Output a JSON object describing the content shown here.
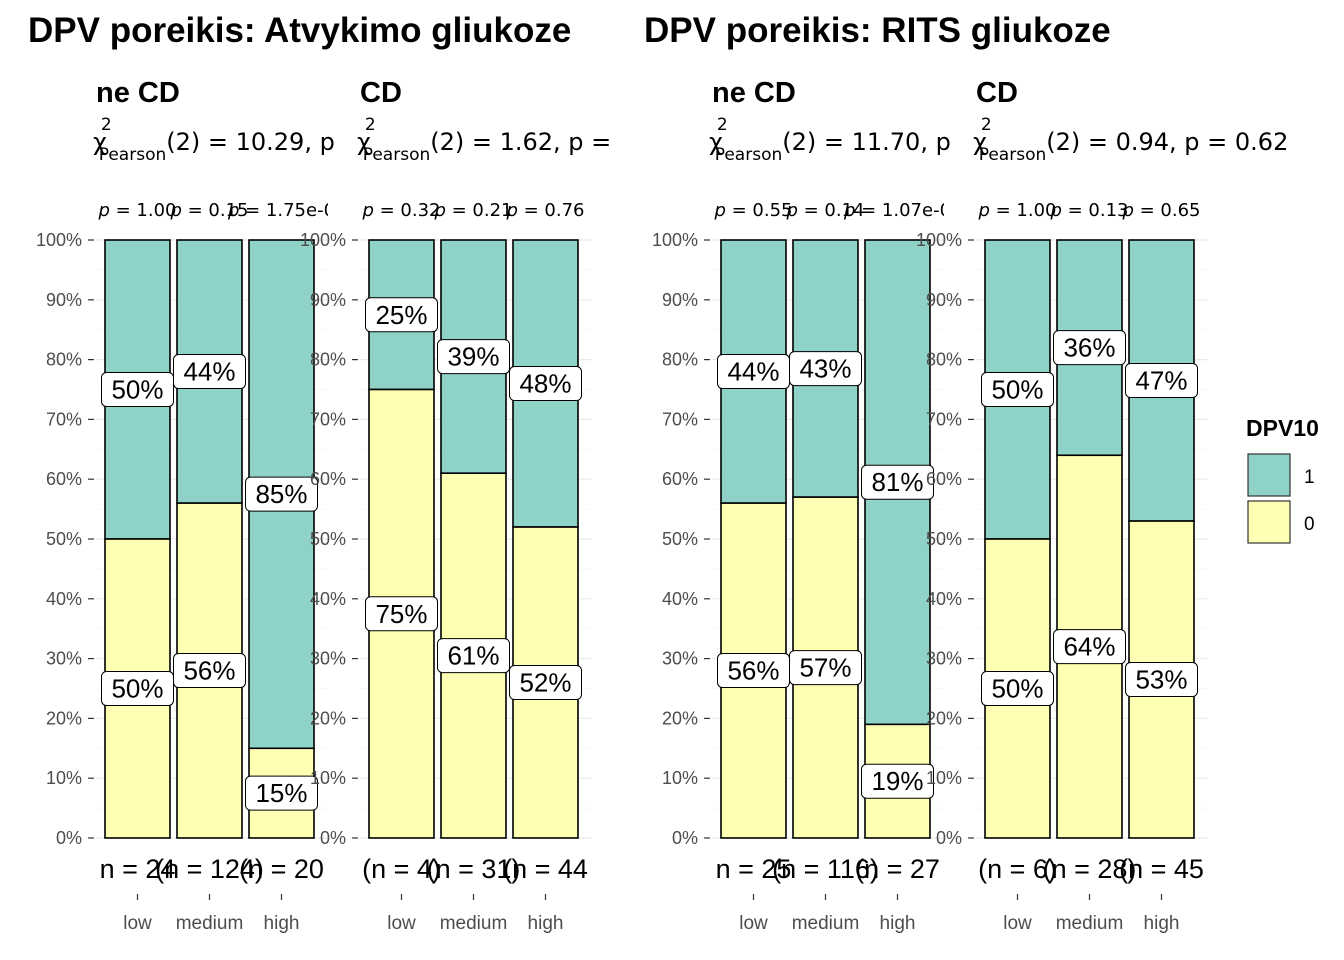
{
  "titles": [
    "DPV poreikis: Atvykimo gliukoze",
    "DPV poreikis: RITS gliukoze"
  ],
  "legend": {
    "title": "DPV10",
    "items": [
      {
        "label": "1",
        "color": "#8fd3c8"
      },
      {
        "label": "0",
        "color": "#ffffb3"
      }
    ]
  },
  "chart_data": [
    {
      "type": "bar",
      "stacked": "percent",
      "group_title": "DPV poreikis: Atvykimo gliukoze",
      "subtitle": "ne CD",
      "stat": {
        "chi_sub": "Pearson",
        "chi_sup": "2",
        "text": "(2) = 10.29, p"
      },
      "categories": [
        "low",
        "medium",
        "high"
      ],
      "y_ticks": [
        "0%",
        "10%",
        "20%",
        "30%",
        "40%",
        "50%",
        "60%",
        "70%",
        "80%",
        "90%",
        "100%"
      ],
      "ylim": [
        0,
        100
      ],
      "series": [
        {
          "name": "0",
          "values": [
            50,
            56,
            15
          ]
        },
        {
          "name": "1",
          "values": [
            50,
            44,
            85
          ]
        }
      ],
      "p_labels": [
        "p = 1.00",
        "p = 0.15",
        "p = 1.75e-0"
      ],
      "n_labels": [
        "n = 24",
        "(n = 124)",
        "(n = 20"
      ]
    },
    {
      "type": "bar",
      "stacked": "percent",
      "group_title": "DPV poreikis: Atvykimo gliukoze",
      "subtitle": "CD",
      "stat": {
        "chi_sub": "Pearson",
        "chi_sup": "2",
        "text": "(2) = 1.62, p ="
      },
      "categories": [
        "low",
        "medium",
        "high"
      ],
      "y_ticks": [
        "0%",
        "10%",
        "20%",
        "30%",
        "40%",
        "50%",
        "60%",
        "70%",
        "80%",
        "90%",
        "100%"
      ],
      "ylim": [
        0,
        100
      ],
      "series": [
        {
          "name": "0",
          "values": [
            75,
            61,
            52
          ]
        },
        {
          "name": "1",
          "values": [
            25,
            39,
            48
          ]
        }
      ],
      "p_labels": [
        "p = 0.32",
        "p = 0.21",
        "p = 0.76"
      ],
      "n_labels": [
        "(n = 4)",
        "(n = 31)",
        "(n = 44"
      ]
    },
    {
      "type": "bar",
      "stacked": "percent",
      "group_title": "DPV poreikis: RITS gliukoze",
      "subtitle": "ne CD",
      "stat": {
        "chi_sub": "Pearson",
        "chi_sup": "2",
        "text": "(2) = 11.70, p"
      },
      "categories": [
        "low",
        "medium",
        "high"
      ],
      "y_ticks": [
        "0%",
        "10%",
        "20%",
        "30%",
        "40%",
        "50%",
        "60%",
        "70%",
        "80%",
        "90%",
        "100%"
      ],
      "ylim": [
        0,
        100
      ],
      "series": [
        {
          "name": "0",
          "values": [
            56,
            57,
            19
          ]
        },
        {
          "name": "1",
          "values": [
            44,
            43,
            81
          ]
        }
      ],
      "p_labels": [
        "p = 0.55",
        "p = 0.14",
        "p = 1.07e-0"
      ],
      "n_labels": [
        "n = 25",
        "(n = 116)",
        "(n = 27"
      ]
    },
    {
      "type": "bar",
      "stacked": "percent",
      "group_title": "DPV poreikis: RITS gliukoze",
      "subtitle": "CD",
      "stat": {
        "chi_sub": "Pearson",
        "chi_sup": "2",
        "text": "(2) = 0.94, p = 0.62"
      },
      "categories": [
        "low",
        "medium",
        "high"
      ],
      "y_ticks": [
        "0%",
        "10%",
        "20%",
        "30%",
        "40%",
        "50%",
        "60%",
        "70%",
        "80%",
        "90%",
        "100%"
      ],
      "ylim": [
        0,
        100
      ],
      "series": [
        {
          "name": "0",
          "values": [
            50,
            64,
            53
          ]
        },
        {
          "name": "1",
          "values": [
            50,
            36,
            47
          ]
        }
      ],
      "p_labels": [
        "p = 1.00",
        "p = 0.13",
        "p = 0.65"
      ],
      "n_labels": [
        "(n = 6)",
        "(n = 28)",
        "(n = 45"
      ]
    }
  ]
}
